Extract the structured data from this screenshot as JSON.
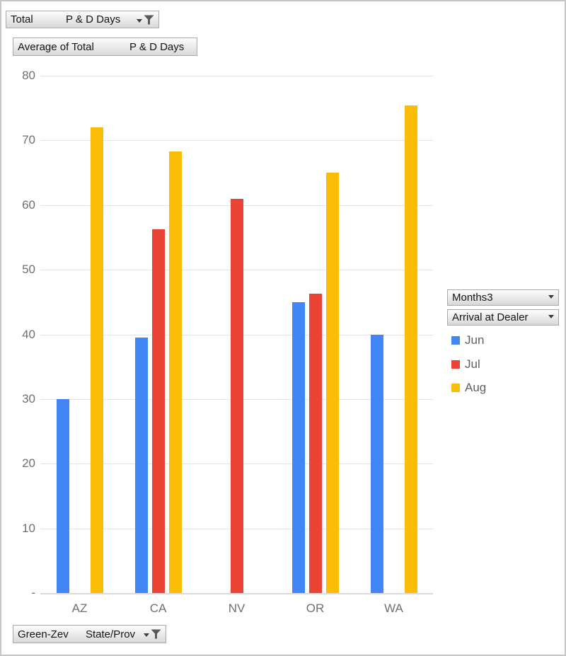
{
  "field_buttons": {
    "total": {
      "left": "Total",
      "right": "P & D Days"
    },
    "average": {
      "left": "Average of Total",
      "right": "P & D Days"
    },
    "state": {
      "left": "Green-Zev",
      "right": "State/Prov"
    },
    "months": {
      "label": "Months3"
    },
    "arrival": {
      "label": "Arrival at Dealer"
    }
  },
  "colors": {
    "jun": "#4285F4",
    "jul": "#EA4335",
    "aug": "#FBBC05",
    "gridline": "#e4e4e4",
    "axis_text": "#6f6f6f"
  },
  "chart_data": {
    "type": "bar",
    "title": "Average of Total P & D Days",
    "categories": [
      "AZ",
      "CA",
      "NV",
      "OR",
      "WA"
    ],
    "series": [
      {
        "name": "Jun",
        "color": "#4285F4",
        "values": [
          30,
          39.5,
          null,
          45,
          40
        ]
      },
      {
        "name": "Jul",
        "color": "#EA4335",
        "values": [
          null,
          56.2,
          61,
          46.3,
          null
        ]
      },
      {
        "name": "Aug",
        "color": "#FBBC05",
        "values": [
          72,
          68.3,
          null,
          65,
          75.4
        ]
      }
    ],
    "ylim": [
      0,
      80
    ],
    "ytick_step": 10,
    "ytick_labels": [
      "-",
      "10",
      "20",
      "30",
      "40",
      "50",
      "60",
      "70",
      "80"
    ],
    "xlabel": "State/Prov",
    "ylabel": "",
    "grid": true,
    "legend_position": "right"
  }
}
